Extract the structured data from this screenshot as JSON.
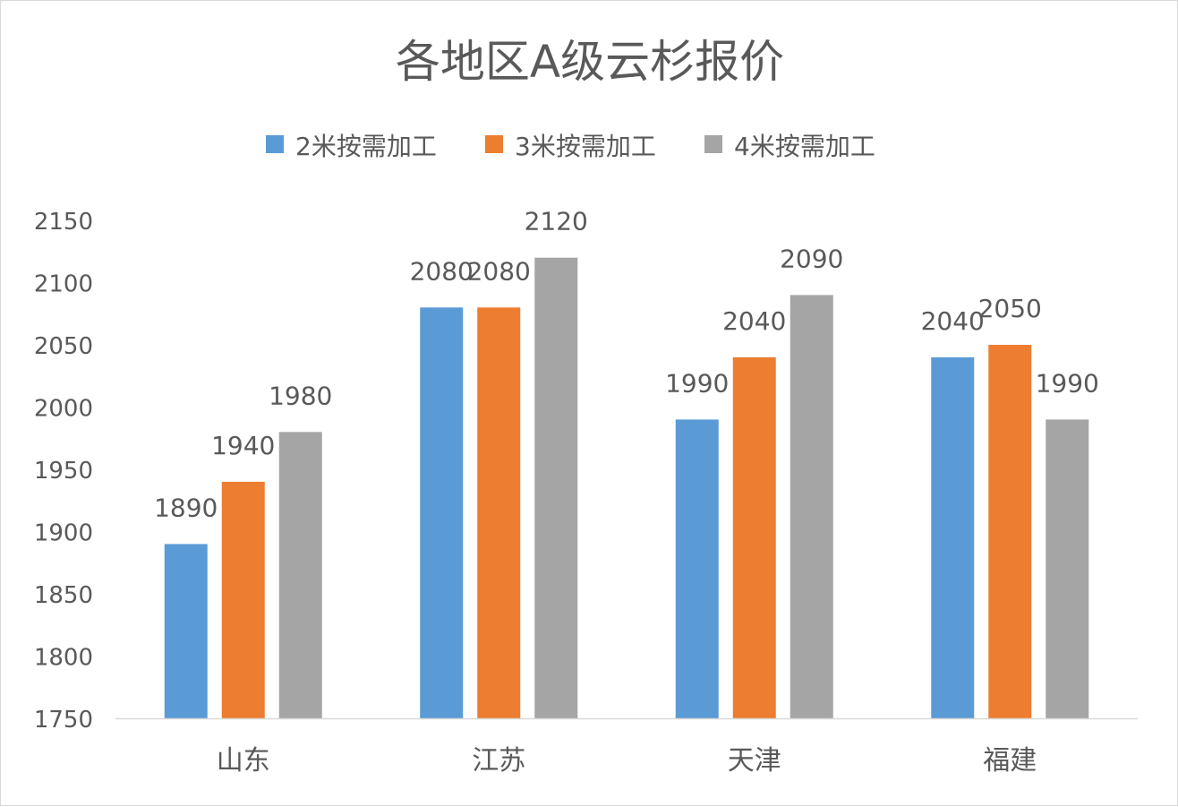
{
  "chart_data": {
    "type": "bar",
    "title": "各地区A级云杉报价",
    "categories": [
      "山东",
      "江苏",
      "天津",
      "福建"
    ],
    "series": [
      {
        "name": "2米按需加工",
        "color": "#5B9BD5",
        "values": [
          1890,
          2080,
          1990,
          2040
        ]
      },
      {
        "name": "3米按需加工",
        "color": "#ED7D31",
        "values": [
          1940,
          2080,
          2040,
          2050
        ]
      },
      {
        "name": "4米按需加工",
        "color": "#A5A5A5",
        "values": [
          1980,
          2120,
          2090,
          1990
        ]
      }
    ],
    "ylim": [
      1750,
      2150
    ],
    "yticks": [
      1750,
      1800,
      1850,
      1900,
      1950,
      2000,
      2050,
      2100,
      2150
    ],
    "grid": false,
    "legend": "top",
    "data_labels": true,
    "xlabel": "",
    "ylabel": ""
  }
}
